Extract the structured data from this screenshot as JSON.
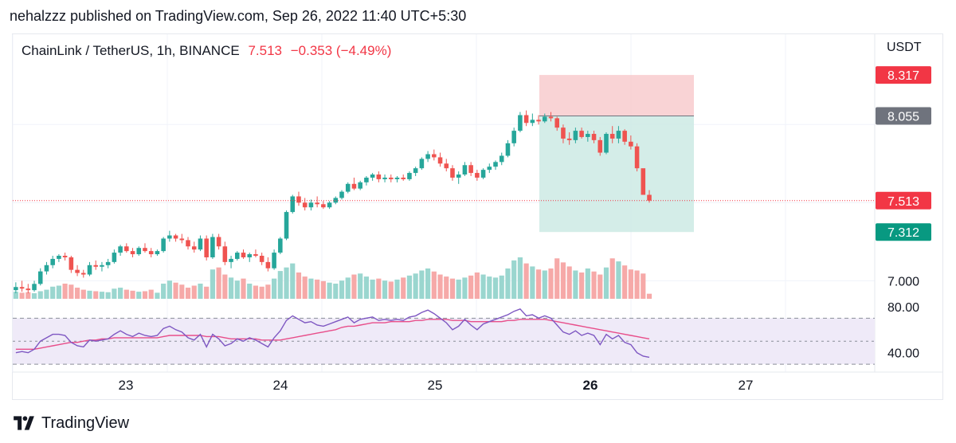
{
  "header": {
    "published_by": "nehalzzz published on TradingView.com, Sep 26, 2022 11:40 UTC+5:30"
  },
  "legend": {
    "symbol": "ChainLink / TetherUS, 1h, BINANCE",
    "last": "7.513",
    "change": "−0.353 (−4.49%)"
  },
  "price_scale": {
    "currency": "USDT",
    "ticks": [
      "7.000"
    ],
    "tags": [
      {
        "label": "8.317",
        "kind": "stop"
      },
      {
        "label": "8.055",
        "kind": "entry"
      },
      {
        "label": "7.513",
        "kind": "last"
      },
      {
        "label": "7.312",
        "kind": "target"
      }
    ]
  },
  "rsi_scale": {
    "ticks": [
      "80.00",
      "40.00"
    ]
  },
  "time_axis": {
    "labels": [
      "23",
      "24",
      "25",
      "26",
      "27"
    ],
    "bold_label": "26"
  },
  "brand": {
    "name": "TradingView",
    "logo_icon": "tradingview-logo-icon"
  },
  "colors": {
    "up": "#26a69a",
    "down": "#ef5350",
    "up_volume": "#9ad6cf",
    "down_volume": "#f6a9a8",
    "stop_zone": "#f7c8cb",
    "target_zone": "#cdeae4",
    "rsi_line": "#7e57c2",
    "rsi_ma": "#e84e8a",
    "rsi_band": "#efeaf8",
    "last_line": "#f23645",
    "entry_tag": "#6f737d",
    "target_tag": "#089981"
  },
  "chart_data": {
    "type": "candlestick",
    "symbol": "ChainLink / TetherUS",
    "interval": "1h",
    "exchange": "BINANCE",
    "last_price": 7.513,
    "change": -0.353,
    "change_pct": -4.49,
    "y_unit": "USDT",
    "ylim": [
      6.9,
      8.45
    ],
    "time_range": [
      "2022-09-22T09:00",
      "2022-09-26T09:00"
    ],
    "ohlc_hourly": [
      [
        6.94,
        6.99,
        6.92,
        6.96
      ],
      [
        6.96,
        7.0,
        6.93,
        6.95
      ],
      [
        6.95,
        6.98,
        6.92,
        6.94
      ],
      [
        6.94,
        7.0,
        6.93,
        6.98
      ],
      [
        6.98,
        7.08,
        6.97,
        7.06
      ],
      [
        7.06,
        7.12,
        7.04,
        7.1
      ],
      [
        7.1,
        7.16,
        7.08,
        7.14
      ],
      [
        7.14,
        7.17,
        7.12,
        7.16
      ],
      [
        7.16,
        7.18,
        7.13,
        7.15
      ],
      [
        7.15,
        7.16,
        7.05,
        7.07
      ],
      [
        7.07,
        7.1,
        7.03,
        7.05
      ],
      [
        7.05,
        7.07,
        7.02,
        7.04
      ],
      [
        7.04,
        7.12,
        7.03,
        7.1
      ],
      [
        7.1,
        7.13,
        7.07,
        7.09
      ],
      [
        7.09,
        7.12,
        7.06,
        7.1
      ],
      [
        7.1,
        7.14,
        7.08,
        7.12
      ],
      [
        7.12,
        7.2,
        7.11,
        7.18
      ],
      [
        7.18,
        7.23,
        7.16,
        7.22
      ],
      [
        7.22,
        7.24,
        7.18,
        7.19
      ],
      [
        7.19,
        7.21,
        7.15,
        7.17
      ],
      [
        7.17,
        7.22,
        7.16,
        7.21
      ],
      [
        7.21,
        7.24,
        7.18,
        7.19
      ],
      [
        7.19,
        7.21,
        7.15,
        7.17
      ],
      [
        7.17,
        7.2,
        7.16,
        7.19
      ],
      [
        7.19,
        7.28,
        7.18,
        7.27
      ],
      [
        7.27,
        7.32,
        7.25,
        7.29
      ],
      [
        7.29,
        7.3,
        7.25,
        7.27
      ],
      [
        7.27,
        7.3,
        7.24,
        7.26
      ],
      [
        7.26,
        7.28,
        7.2,
        7.22
      ],
      [
        7.22,
        7.25,
        7.18,
        7.2
      ],
      [
        7.2,
        7.29,
        7.19,
        7.27
      ],
      [
        7.27,
        7.29,
        7.13,
        7.15
      ],
      [
        7.15,
        7.3,
        7.14,
        7.28
      ],
      [
        7.28,
        7.3,
        7.2,
        7.22
      ],
      [
        7.22,
        7.25,
        7.1,
        7.12
      ],
      [
        7.12,
        7.16,
        7.08,
        7.14
      ],
      [
        7.14,
        7.19,
        7.13,
        7.18
      ],
      [
        7.18,
        7.2,
        7.14,
        7.15
      ],
      [
        7.15,
        7.18,
        7.12,
        7.17
      ],
      [
        7.17,
        7.2,
        7.15,
        7.16
      ],
      [
        7.16,
        7.18,
        7.1,
        7.12
      ],
      [
        7.12,
        7.15,
        7.06,
        7.08
      ],
      [
        7.08,
        7.2,
        7.07,
        7.18
      ],
      [
        7.18,
        7.28,
        7.17,
        7.27
      ],
      [
        7.27,
        7.45,
        7.26,
        7.44
      ],
      [
        7.44,
        7.55,
        7.43,
        7.54
      ],
      [
        7.54,
        7.57,
        7.48,
        7.5
      ],
      [
        7.5,
        7.53,
        7.45,
        7.47
      ],
      [
        7.47,
        7.52,
        7.45,
        7.5
      ],
      [
        7.5,
        7.54,
        7.47,
        7.49
      ],
      [
        7.49,
        7.51,
        7.46,
        7.47
      ],
      [
        7.47,
        7.51,
        7.46,
        7.5
      ],
      [
        7.5,
        7.54,
        7.49,
        7.53
      ],
      [
        7.53,
        7.58,
        7.52,
        7.57
      ],
      [
        7.57,
        7.63,
        7.56,
        7.62
      ],
      [
        7.62,
        7.66,
        7.58,
        7.59
      ],
      [
        7.59,
        7.64,
        7.58,
        7.63
      ],
      [
        7.63,
        7.67,
        7.61,
        7.66
      ],
      [
        7.66,
        7.69,
        7.64,
        7.68
      ],
      [
        7.68,
        7.7,
        7.63,
        7.65
      ],
      [
        7.65,
        7.68,
        7.63,
        7.66
      ],
      [
        7.66,
        7.68,
        7.63,
        7.65
      ],
      [
        7.65,
        7.67,
        7.63,
        7.66
      ],
      [
        7.66,
        7.68,
        7.64,
        7.65
      ],
      [
        7.65,
        7.7,
        7.64,
        7.69
      ],
      [
        7.69,
        7.73,
        7.67,
        7.72
      ],
      [
        7.72,
        7.79,
        7.71,
        7.78
      ],
      [
        7.78,
        7.83,
        7.76,
        7.81
      ],
      [
        7.81,
        7.84,
        7.77,
        7.79
      ],
      [
        7.79,
        7.82,
        7.73,
        7.75
      ],
      [
        7.75,
        7.78,
        7.7,
        7.72
      ],
      [
        7.72,
        7.74,
        7.64,
        7.66
      ],
      [
        7.66,
        7.7,
        7.62,
        7.68
      ],
      [
        7.68,
        7.76,
        7.67,
        7.74
      ],
      [
        7.74,
        7.76,
        7.67,
        7.69
      ],
      [
        7.69,
        7.71,
        7.64,
        7.66
      ],
      [
        7.66,
        7.72,
        7.65,
        7.71
      ],
      [
        7.71,
        7.75,
        7.69,
        7.73
      ],
      [
        7.73,
        7.77,
        7.71,
        7.76
      ],
      [
        7.76,
        7.82,
        7.74,
        7.8
      ],
      [
        7.8,
        7.9,
        7.79,
        7.88
      ],
      [
        7.88,
        7.98,
        7.86,
        7.96
      ],
      [
        7.96,
        8.08,
        7.95,
        8.06
      ],
      [
        8.06,
        8.09,
        7.99,
        8.01
      ],
      [
        8.01,
        8.07,
        7.99,
        8.03
      ],
      [
        8.03,
        8.06,
        8.0,
        8.02
      ],
      [
        8.02,
        8.07,
        8.01,
        8.05
      ],
      [
        8.05,
        8.08,
        8.02,
        8.04
      ],
      [
        8.04,
        8.05,
        7.96,
        7.98
      ],
      [
        7.98,
        8.0,
        7.88,
        7.91
      ],
      [
        7.91,
        7.95,
        7.87,
        7.9
      ],
      [
        7.9,
        7.98,
        7.88,
        7.96
      ],
      [
        7.96,
        7.98,
        7.91,
        7.92
      ],
      [
        7.92,
        7.96,
        7.89,
        7.94
      ],
      [
        7.94,
        7.96,
        7.88,
        7.9
      ],
      [
        7.9,
        7.92,
        7.8,
        7.82
      ],
      [
        7.82,
        7.95,
        7.81,
        7.94
      ],
      [
        7.94,
        7.99,
        7.88,
        7.91
      ],
      [
        7.91,
        7.99,
        7.88,
        7.96
      ],
      [
        7.96,
        7.97,
        7.87,
        7.89
      ],
      [
        7.89,
        7.93,
        7.84,
        7.86
      ],
      [
        7.86,
        7.88,
        7.7,
        7.72
      ],
      [
        7.72,
        7.62,
        7.6,
        7.55
      ],
      [
        7.55,
        7.58,
        7.5,
        7.513
      ]
    ],
    "volume_hourly": [
      14,
      12,
      13,
      11,
      15,
      18,
      24,
      26,
      30,
      28,
      22,
      18,
      16,
      15,
      14,
      13,
      20,
      22,
      18,
      16,
      14,
      15,
      18,
      12,
      30,
      36,
      32,
      28,
      22,
      26,
      30,
      24,
      58,
      62,
      48,
      42,
      36,
      40,
      30,
      26,
      24,
      28,
      40,
      55,
      62,
      70,
      52,
      44,
      40,
      38,
      35,
      32,
      30,
      36,
      42,
      48,
      50,
      44,
      38,
      40,
      36,
      34,
      38,
      42,
      46,
      50,
      56,
      60,
      54,
      48,
      44,
      40,
      38,
      42,
      46,
      52,
      48,
      44,
      42,
      46,
      60,
      76,
      82,
      70,
      64,
      58,
      56,
      60,
      80,
      72,
      64,
      56,
      52,
      60,
      54,
      48,
      62,
      80,
      74,
      66,
      58,
      56,
      50,
      10
    ],
    "rsi": [
      40,
      41,
      40,
      43,
      50,
      53,
      56,
      56,
      55,
      49,
      46,
      45,
      51,
      50,
      51,
      52,
      56,
      59,
      56,
      54,
      57,
      55,
      54,
      55,
      61,
      63,
      60,
      58,
      53,
      51,
      56,
      45,
      56,
      52,
      46,
      48,
      52,
      50,
      53,
      51,
      48,
      45,
      53,
      59,
      68,
      72,
      69,
      66,
      67,
      64,
      63,
      65,
      67,
      69,
      71,
      66,
      69,
      70,
      71,
      68,
      69,
      68,
      69,
      68,
      71,
      72,
      75,
      77,
      74,
      70,
      66,
      60,
      63,
      69,
      64,
      60,
      65,
      67,
      69,
      71,
      73,
      76,
      78,
      72,
      73,
      70,
      72,
      70,
      64,
      58,
      56,
      59,
      55,
      57,
      55,
      47,
      56,
      52,
      55,
      49,
      47,
      40,
      37,
      36
    ],
    "rsi_ma": [
      43,
      43,
      43,
      43,
      44,
      45,
      46,
      47,
      48,
      49,
      49,
      50,
      51,
      51,
      52,
      52,
      53,
      53,
      53,
      53,
      53,
      53,
      53,
      53,
      54,
      55,
      55,
      55,
      55,
      55,
      55,
      54,
      54,
      54,
      53,
      52,
      52,
      52,
      52,
      52,
      51,
      51,
      51,
      51,
      52,
      53,
      54,
      55,
      56,
      57,
      58,
      59,
      60,
      62,
      63,
      63,
      64,
      65,
      66,
      66,
      66,
      67,
      67,
      67,
      67,
      68,
      68,
      69,
      69,
      69,
      69,
      68,
      68,
      68,
      67,
      67,
      67,
      67,
      67,
      67,
      68,
      68,
      69,
      69,
      69,
      69,
      69,
      68,
      67,
      66,
      65,
      64,
      63,
      62,
      61,
      60,
      59,
      58,
      57,
      56,
      55,
      54,
      53,
      52
    ],
    "rsi_levels": {
      "upper": 70,
      "middle": 50,
      "lower": 30,
      "ylim": [
        28,
        82
      ]
    },
    "position": {
      "side": "short",
      "entry": 8.055,
      "stop": 8.317,
      "target": 7.312
    },
    "price_scale_ticks": [
      7.0
    ],
    "rsi_scale_ticks": [
      80,
      40
    ],
    "x_tick_labels": [
      "23",
      "24",
      "25",
      "26",
      "27"
    ]
  }
}
